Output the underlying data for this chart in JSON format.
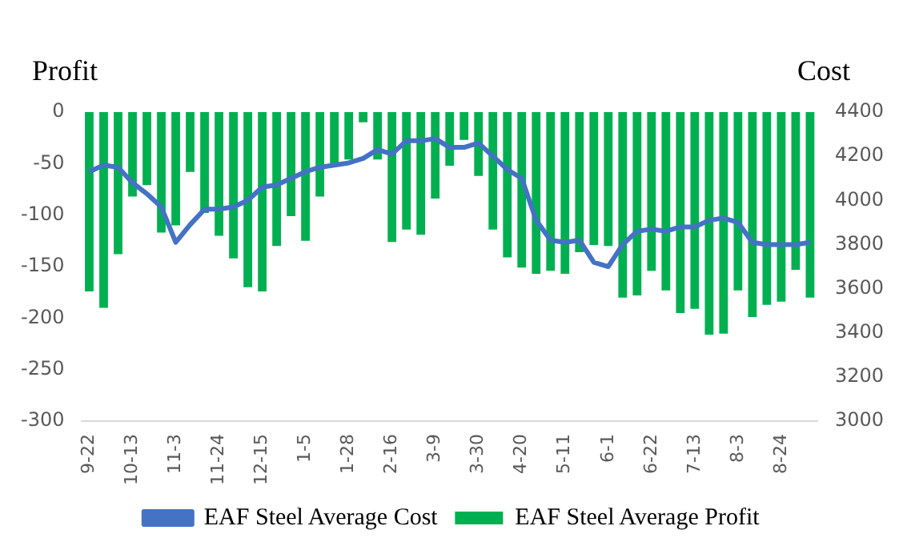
{
  "chart_data": {
    "type": "bar",
    "ylabel": "Profit",
    "y2label": "Cost",
    "categories": [
      "9-22",
      null,
      null,
      "10-13",
      null,
      null,
      "11-3",
      null,
      null,
      "11-24",
      null,
      null,
      "12-15",
      null,
      null,
      "1-5",
      null,
      null,
      "1-28",
      null,
      null,
      "2-16",
      null,
      null,
      "3-9",
      null,
      null,
      "3-30",
      null,
      null,
      "4-20",
      null,
      null,
      "5-11",
      null,
      null,
      "6-1",
      null,
      null,
      "6-22",
      null,
      null,
      "7-13",
      null,
      null,
      "8-3",
      null,
      null,
      "8-24",
      null,
      null
    ],
    "series": [
      {
        "name": "EAF Steel Average Profit",
        "color": "#00b050",
        "values": [
          -174,
          -190,
          -138,
          -82,
          -71,
          -117,
          -110,
          -58,
          -98,
          -120,
          -142,
          -170,
          -174,
          -130,
          -101,
          -125,
          -82,
          -50,
          -46,
          -10,
          -46,
          -126,
          -114,
          -119,
          -84,
          -52,
          -27,
          -62,
          -114,
          -141,
          -151,
          -157,
          -154,
          -157,
          -136,
          -129,
          -130,
          -180,
          -178,
          -154,
          -173,
          -195,
          -191,
          -216,
          -215,
          -173,
          -199,
          -187,
          -184,
          -153,
          -180
        ]
      },
      {
        "name": "EAF Steel Average Cost",
        "type": "line",
        "axis": "y2",
        "color": "#4472c4",
        "values": [
          4130,
          4160,
          4150,
          4080,
          4030,
          3970,
          3810,
          3890,
          3960,
          3960,
          3970,
          4000,
          4060,
          4070,
          4100,
          4130,
          4150,
          4160,
          4170,
          4190,
          4230,
          4210,
          4270,
          4270,
          4280,
          4240,
          4240,
          4260,
          4200,
          4140,
          4100,
          3910,
          3820,
          3810,
          3820,
          3720,
          3700,
          3800,
          3860,
          3870,
          3860,
          3880,
          3880,
          3910,
          3920,
          3900,
          3810,
          3800,
          3800,
          3800,
          3810
        ]
      }
    ],
    "ylim": [
      -300,
      0
    ],
    "yticks": [
      -300,
      -250,
      -200,
      -150,
      -100,
      -50,
      0
    ],
    "y2lim": [
      3000,
      4400
    ],
    "y2ticks": [
      3000,
      3200,
      3400,
      3600,
      3800,
      4000,
      4200,
      4400
    ],
    "grid": false,
    "legend": "bottom",
    "marker": "none"
  }
}
